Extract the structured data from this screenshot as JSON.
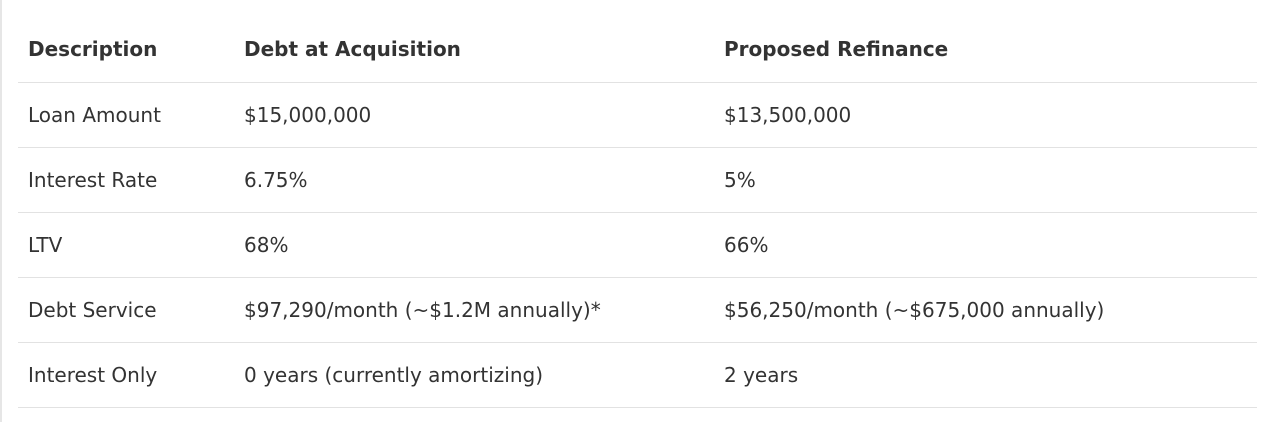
{
  "table": {
    "header": [
      "Description",
      "Debt at Acquisition",
      "Proposed Refinance"
    ],
    "rows": [
      [
        "Loan Amount",
        "$15,000,000",
        "$13,500,000"
      ],
      [
        "Interest Rate",
        "6.75%",
        "5%"
      ],
      [
        "LTV",
        "68%",
        "66%"
      ],
      [
        "Debt Service",
        "$97,290/month (~$1.2M annually)*",
        "$56,250/month (~$675,000 annually)"
      ],
      [
        "Interest Only",
        "0 years (currently amortizing)",
        "2 years"
      ]
    ]
  }
}
